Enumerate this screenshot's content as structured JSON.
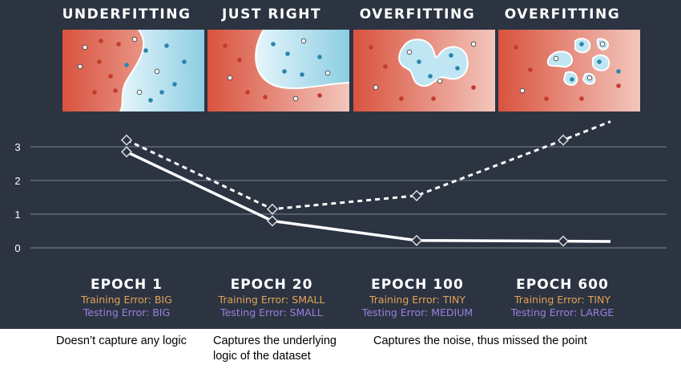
{
  "stages": [
    {
      "title": "UNDERFITTING",
      "epoch": "EPOCH 1",
      "training_error": "Training Error: BIG",
      "testing_error": "Testing Error: BIG"
    },
    {
      "title": "JUST RIGHT",
      "epoch": "EPOCH 20",
      "training_error": "Training Error: SMALL",
      "testing_error": "Testing Error: SMALL"
    },
    {
      "title": "OVERFITTING",
      "epoch": "EPOCH 100",
      "training_error": "Training Error: TINY",
      "testing_error": "Testing Error: MEDIUM"
    },
    {
      "title": "OVERFITTING",
      "epoch": "EPOCH 600",
      "training_error": "Training Error: TINY",
      "testing_error": "Testing Error: LARGE"
    }
  ],
  "captions": {
    "c1": "Doesn’t capture any logic",
    "c2": "Captures the underlying logic of the dataset",
    "c3": "Captures the noise, thus missed the point"
  },
  "chart_data": {
    "type": "line",
    "categories": [
      "EPOCH 1",
      "EPOCH 20",
      "EPOCH 100",
      "EPOCH 600"
    ],
    "series": [
      {
        "values": [
          2.85,
          0.8,
          0.22,
          0.2
        ],
        "style": "solid"
      },
      {
        "values": [
          3.2,
          1.15,
          1.55,
          3.2
        ],
        "style": "dashed"
      }
    ],
    "ylim": [
      0,
      3
    ],
    "yticks": [
      "0",
      "1",
      "2",
      "3"
    ],
    "grid": true
  },
  "colors": {
    "panel": "#2c3442",
    "red_region": "#d9604a",
    "blue_region": "#a8d8e8",
    "training_label": "#e3a256",
    "testing_label": "#9b7fe0",
    "line": "#ffffff"
  },
  "icons": {
    "marker": "diamond-marker"
  }
}
